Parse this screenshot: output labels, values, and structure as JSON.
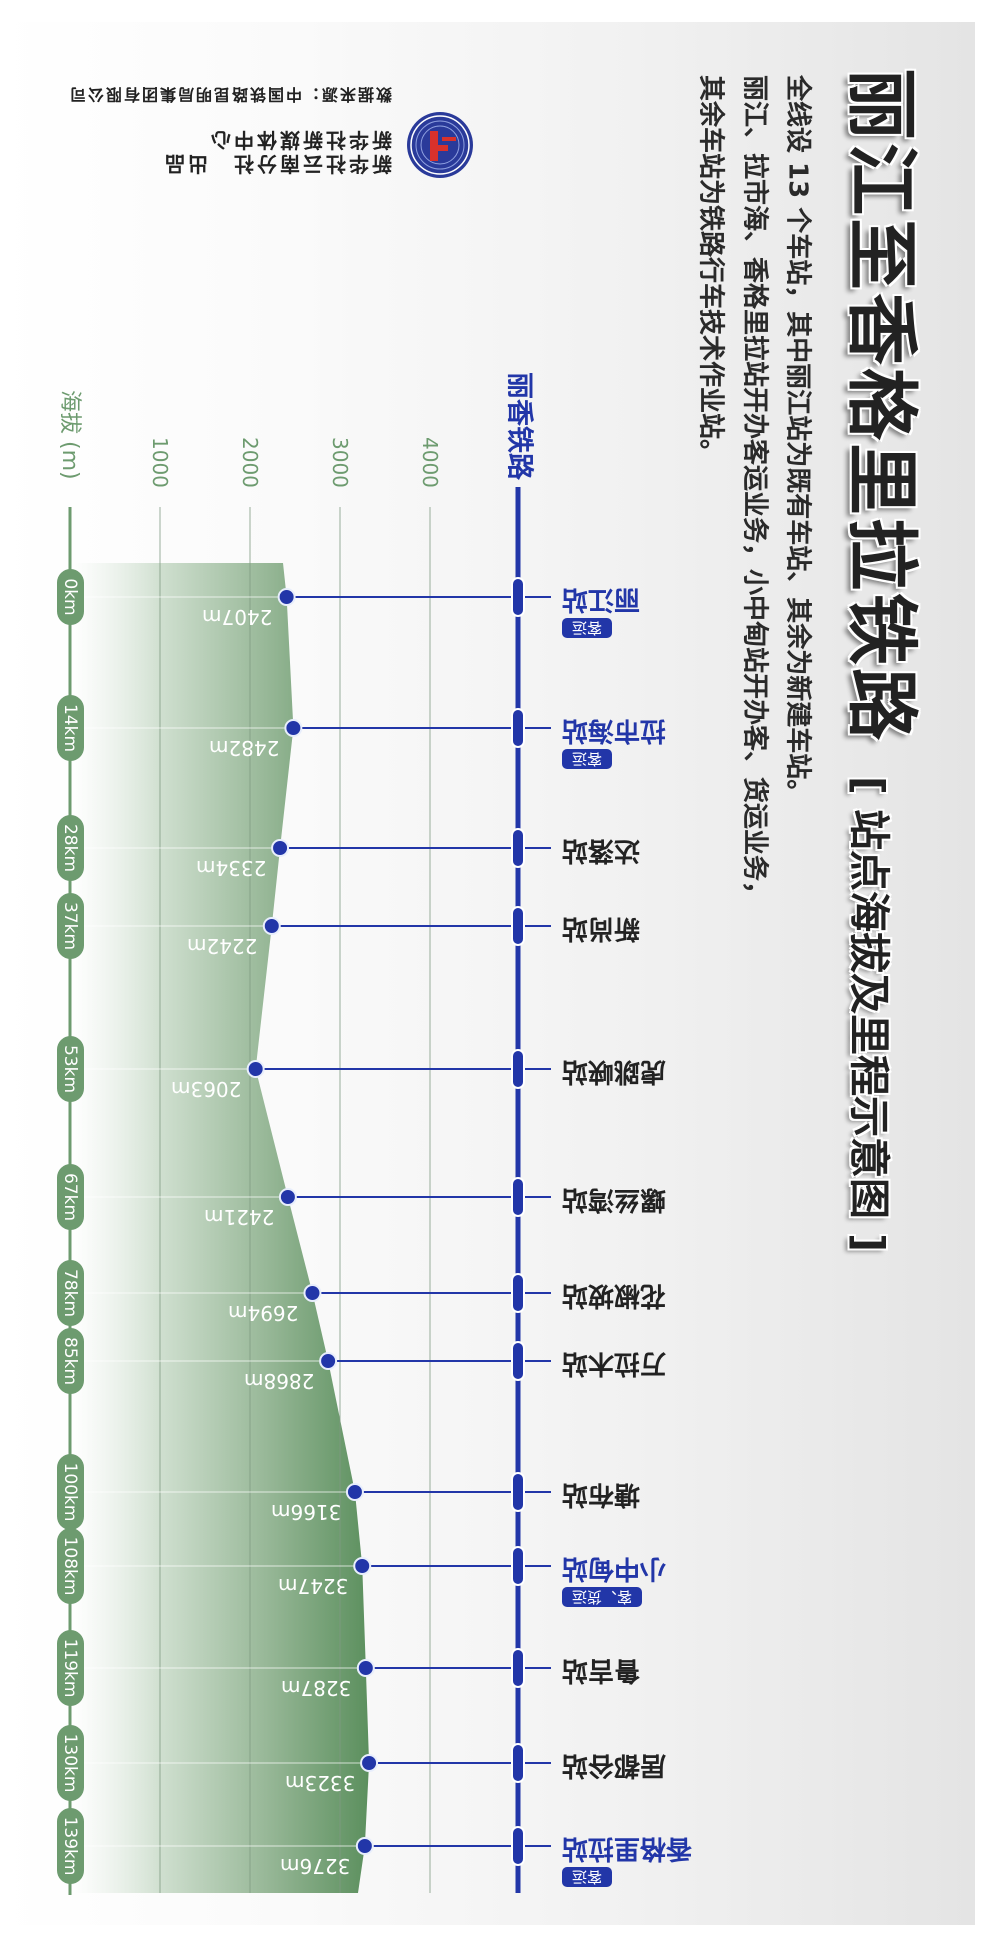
{
  "title": "丽江至香格里拉铁路",
  "subtitle": "[ 站点海拔及里程示意图 ]",
  "description": [
    "全线设 13 个车站，其中丽江站为既有车站、其余为新建车站。",
    "丽江、拉市海、香格里拉站开办客运业务，小中甸站开办客、货运业务，",
    "其余车站为铁路行车技术作业站。"
  ],
  "credits": {
    "producer": "新华社云南分社　出品",
    "center": "新华社新媒体中心",
    "source": "数据来源：中国铁路昆明局集团有限公司",
    "logo": "xinhua-logo"
  },
  "railway_label": "丽香铁路",
  "colors": {
    "rail_blue": "#2236a8",
    "terrain_green": "#6d9b6f",
    "text": "#222222"
  },
  "chart_data": {
    "type": "area",
    "ylabel": "海拔 (m)",
    "y_ticks": [
      1000,
      2000,
      3000,
      4000
    ],
    "ylim": [
      0,
      4000
    ],
    "x_unit": "km",
    "y_unit": "m",
    "grid": true,
    "stations": [
      {
        "name": "丽江站",
        "km": 0,
        "elevation": 2407,
        "service": "客运"
      },
      {
        "name": "拉市海站",
        "km": 14,
        "elevation": 2482,
        "service": "客运"
      },
      {
        "name": "达落站",
        "km": 28,
        "elevation": 2334,
        "service": ""
      },
      {
        "name": "新尚站",
        "km": 37,
        "elevation": 2242,
        "service": ""
      },
      {
        "name": "虎跳峡站",
        "km": 53,
        "elevation": 2063,
        "service": ""
      },
      {
        "name": "螺丝湾站",
        "km": 67,
        "elevation": 2421,
        "service": ""
      },
      {
        "name": "花椒坡站",
        "km": 78,
        "elevation": 2694,
        "service": ""
      },
      {
        "name": "万拉木站",
        "km": 85,
        "elevation": 2868,
        "service": ""
      },
      {
        "name": "塘布站",
        "km": 100,
        "elevation": 3166,
        "service": ""
      },
      {
        "name": "小中甸站",
        "km": 108,
        "elevation": 3247,
        "service": "客、货运"
      },
      {
        "name": "鲁吉站",
        "km": 119,
        "elevation": 3287,
        "service": ""
      },
      {
        "name": "居都谷站",
        "km": 130,
        "elevation": 3323,
        "service": ""
      },
      {
        "name": "香格里拉站",
        "km": 139,
        "elevation": 3276,
        "service": "客运"
      }
    ]
  }
}
